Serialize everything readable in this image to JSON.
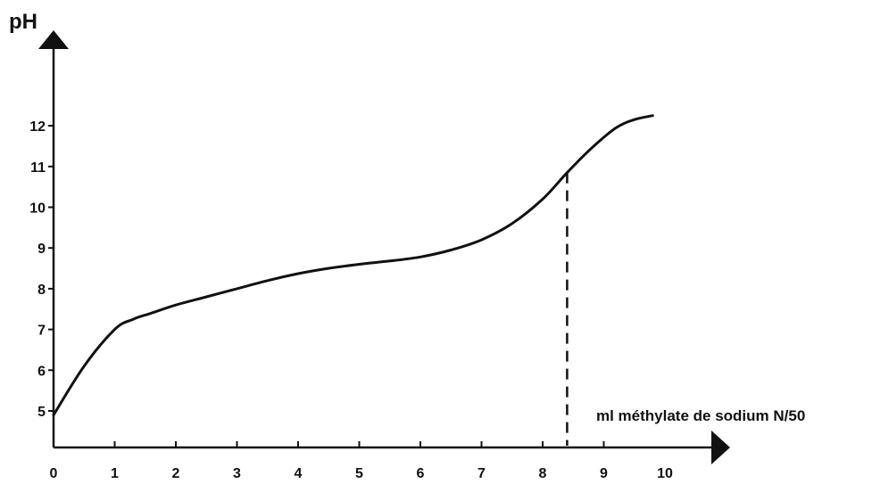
{
  "chart_data": {
    "type": "line",
    "title": "",
    "ylabel": "pH",
    "xlabel": "ml méthylate de sodium N/50",
    "x_ticks": [
      0,
      1,
      2,
      3,
      4,
      5,
      6,
      7,
      8,
      9,
      10
    ],
    "y_ticks": [
      5,
      6,
      7,
      8,
      9,
      10,
      11,
      12
    ],
    "x_tick_labels": [
      "0",
      "1",
      "2",
      "3",
      "4",
      "5",
      "6",
      "7",
      "8",
      "9",
      "10"
    ],
    "y_tick_labels": [
      "5",
      "6",
      "7",
      "8",
      "9",
      "10",
      "11",
      "12"
    ],
    "xlim": [
      0,
      10.2
    ],
    "ylim": [
      3.8,
      14.0
    ],
    "grid": false,
    "series": [
      {
        "x": [
          0,
          0.5,
          1.0,
          1.3,
          1.6,
          2.0,
          2.5,
          3.0,
          3.5,
          4.0,
          4.5,
          5.0,
          5.5,
          6.0,
          6.5,
          7.0,
          7.5,
          8.0,
          8.4,
          8.8,
          9.2,
          9.5,
          9.8
        ],
        "y": [
          4.9,
          6.1,
          7.0,
          7.25,
          7.4,
          7.6,
          7.8,
          8.0,
          8.2,
          8.37,
          8.5,
          8.6,
          8.68,
          8.78,
          8.95,
          9.2,
          9.6,
          10.2,
          10.85,
          11.45,
          11.95,
          12.15,
          12.25
        ]
      }
    ],
    "annotations": [
      {
        "type": "vertical-dashed-line",
        "x": 8.4,
        "y_from": 3.8,
        "y_to": 10.85
      }
    ]
  }
}
